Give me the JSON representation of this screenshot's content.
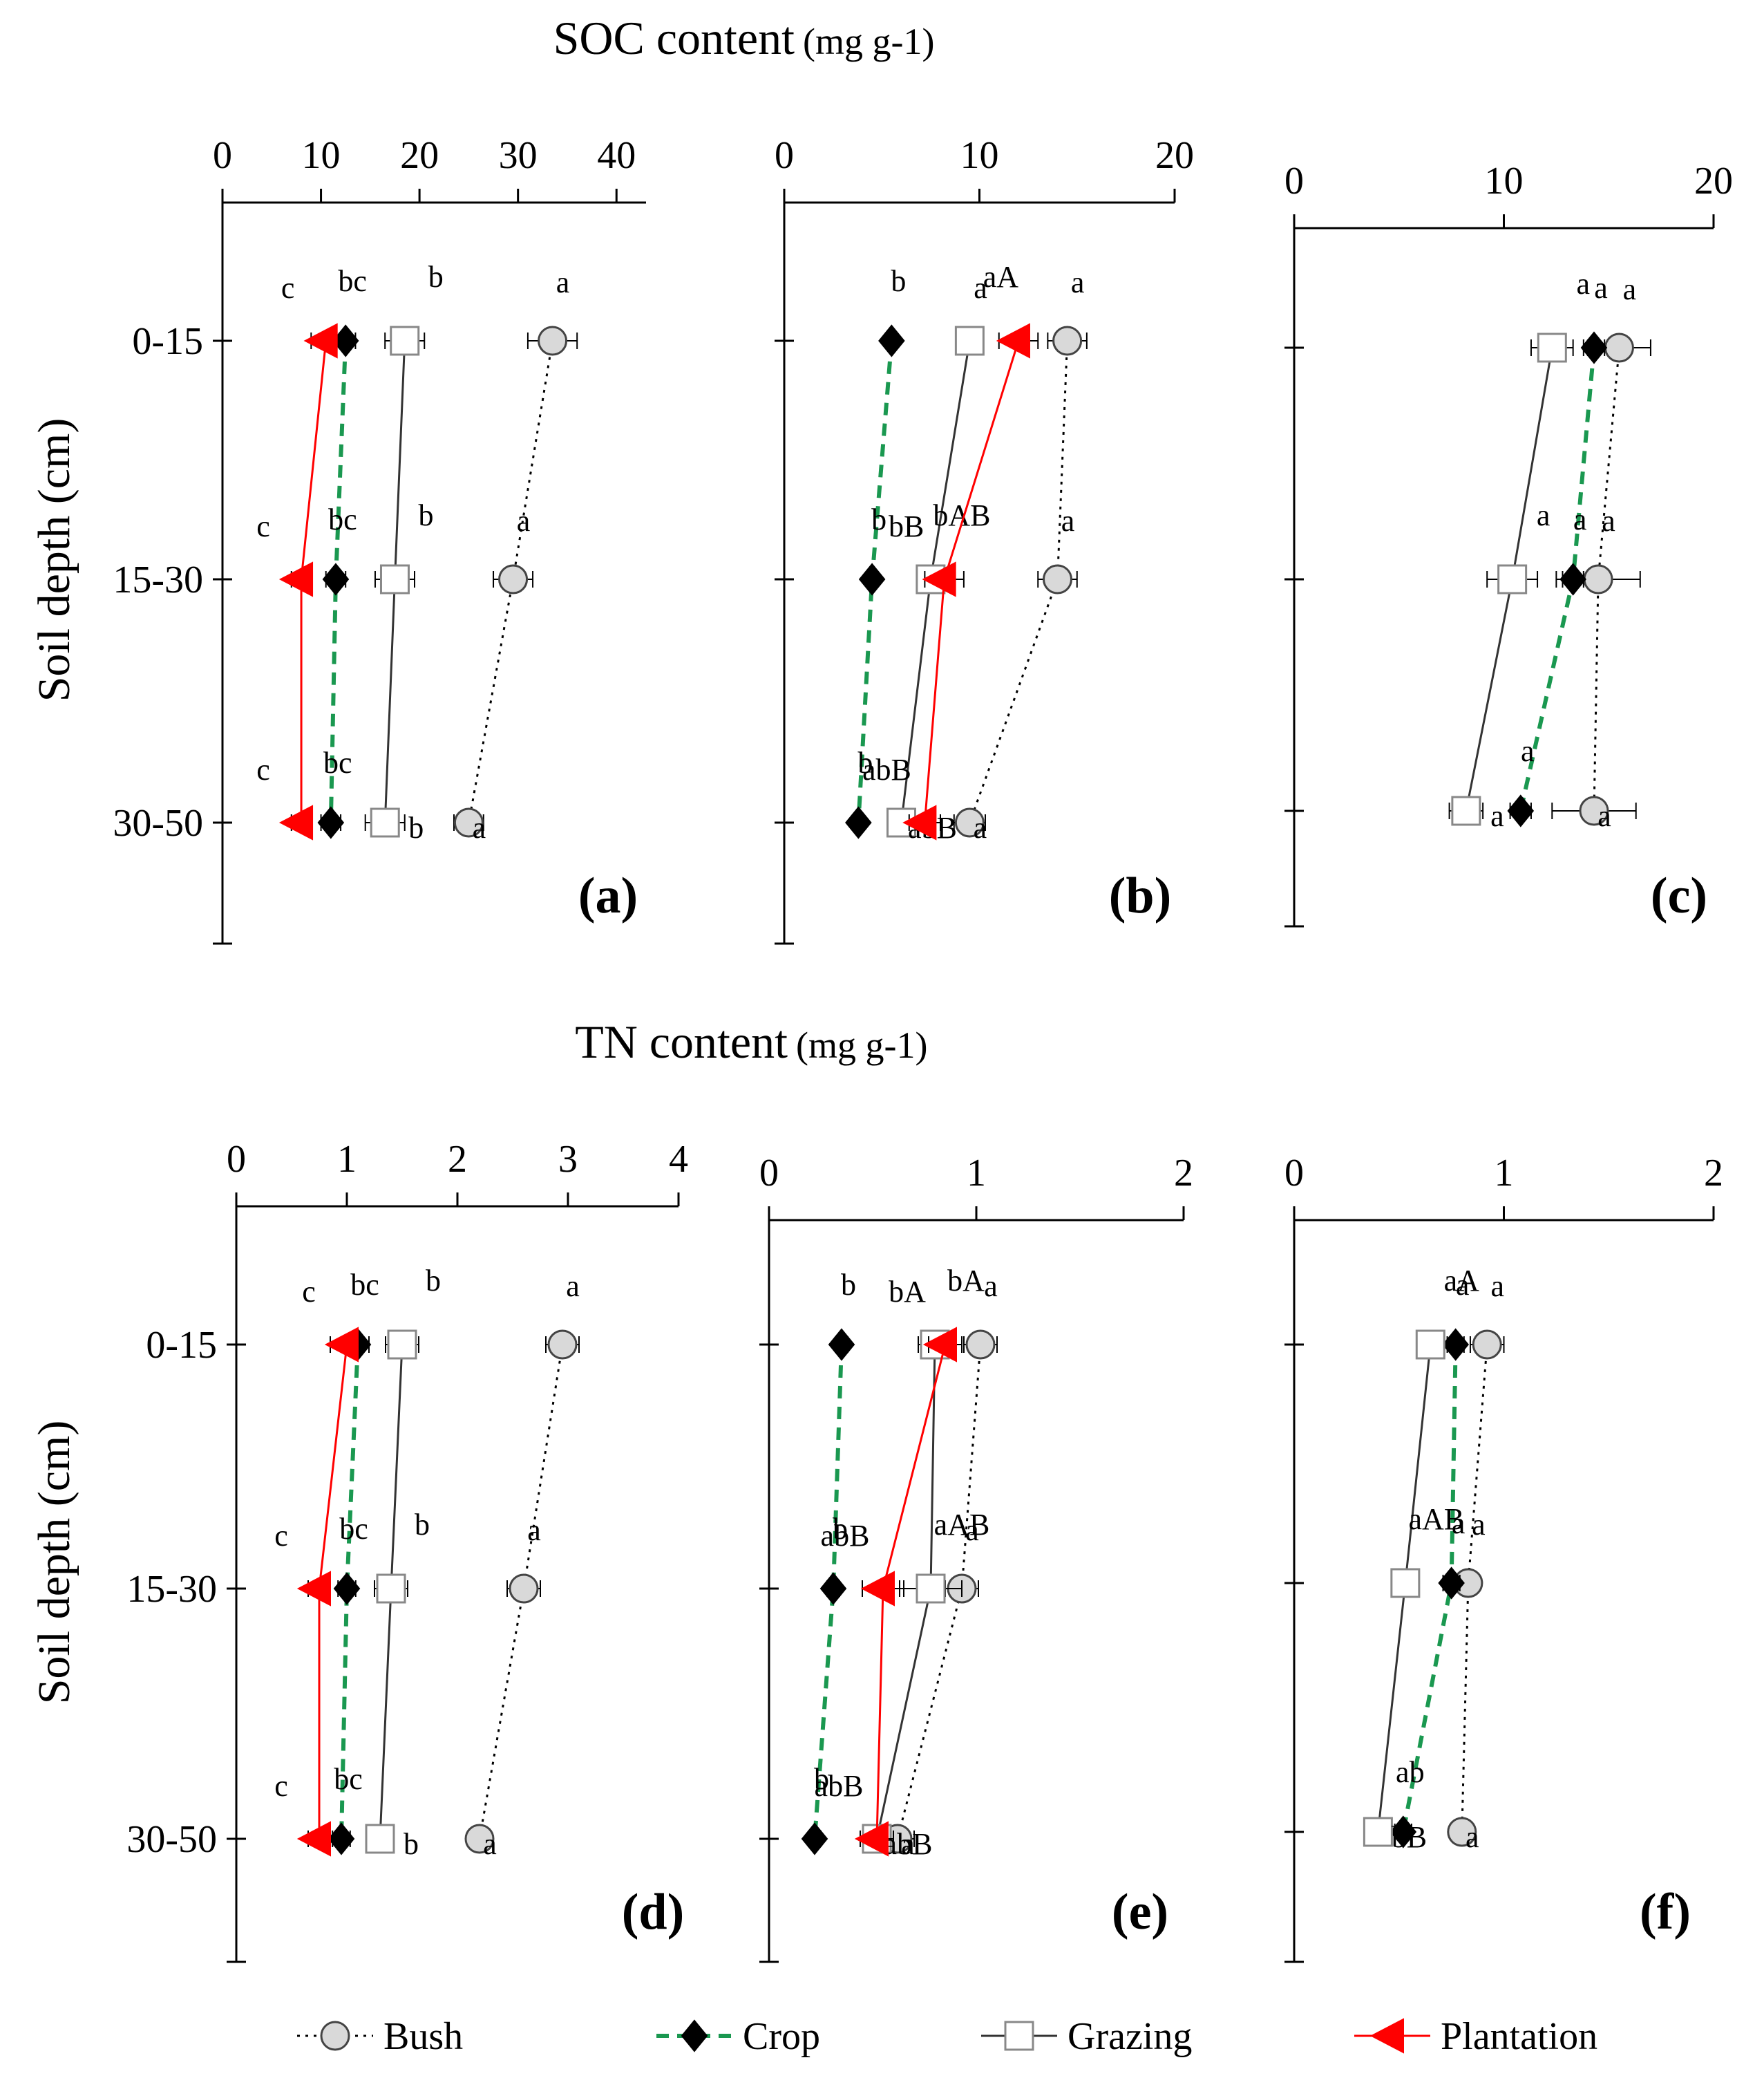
{
  "chart_data": [
    {
      "type": "line",
      "panel": "(a)",
      "title": "SOC content",
      "unit": "(mg g-1)",
      "ylabel": "Soil depth (cm)",
      "categories": [
        "0-15",
        "15-30",
        "30-50"
      ],
      "xlim": [
        0,
        43
      ],
      "xticks": [
        0,
        10,
        20,
        30,
        40
      ],
      "series": [
        {
          "name": "Bush",
          "values": [
            33.5,
            29.5,
            25.0
          ],
          "errors": [
            2.5,
            2.0,
            1.5
          ],
          "labels": [
            "a",
            "a",
            "a"
          ]
        },
        {
          "name": "Crop",
          "values": [
            12.5,
            11.5,
            11.0
          ],
          "errors": [
            1.0,
            1.0,
            1.0
          ],
          "labels": [
            "bc",
            "bc",
            "bc"
          ]
        },
        {
          "name": "Grazing",
          "values": [
            18.5,
            17.5,
            16.5
          ],
          "errors": [
            2.0,
            2.0,
            2.0
          ],
          "labels": [
            "b",
            "b",
            "b"
          ]
        },
        {
          "name": "Plantation",
          "values": [
            10.5,
            8.0,
            8.0
          ],
          "errors": [
            1.5,
            1.0,
            1.0
          ],
          "labels": [
            "c",
            "c",
            "c"
          ]
        }
      ]
    },
    {
      "type": "line",
      "panel": "(b)",
      "title": "SOC content",
      "unit": "(mg g-1)",
      "categories": [
        "0-15",
        "15-30",
        "30-50"
      ],
      "xlim": [
        0,
        20
      ],
      "xticks": [
        0,
        10,
        20
      ],
      "series": [
        {
          "name": "Bush",
          "values": [
            14.5,
            14.0,
            9.5
          ],
          "errors": [
            1.0,
            1.0,
            0.8
          ],
          "labels": [
            "a",
            "a",
            "a"
          ]
        },
        {
          "name": "Crop",
          "values": [
            5.5,
            4.5,
            3.8
          ],
          "errors": [
            0.3,
            0.3,
            0.3
          ],
          "labels": [
            "b",
            "b",
            "b"
          ]
        },
        {
          "name": "Grazing",
          "values": [
            9.5,
            7.5,
            6.0
          ],
          "errors": [
            0.6,
            0.6,
            0.6
          ],
          "labels": [
            "aA",
            "bAB",
            "abB"
          ]
        },
        {
          "name": "Plantation",
          "values": [
            12.0,
            8.2,
            7.2
          ],
          "errors": [
            1.0,
            1.0,
            0.8
          ],
          "labels": [
            "a",
            "bB",
            "abB"
          ]
        }
      ]
    },
    {
      "type": "line",
      "panel": "(c)",
      "title": "SOC content",
      "unit": "(mg g-1)",
      "categories": [
        "0-15",
        "15-30",
        "30-50"
      ],
      "xlim": [
        0,
        20
      ],
      "xticks": [
        0,
        10,
        20
      ],
      "series": [
        {
          "name": "Bush",
          "values": [
            15.5,
            14.5,
            14.3
          ],
          "errors": [
            1.5,
            2.0,
            2.0
          ],
          "labels": [
            "a",
            "a",
            "a"
          ]
        },
        {
          "name": "Crop",
          "values": [
            14.3,
            13.3,
            10.8
          ],
          "errors": [
            0.5,
            0.5,
            0.5
          ],
          "labels": [
            "a",
            "a",
            "a"
          ]
        },
        {
          "name": "Grazing",
          "values": [
            12.3,
            10.4,
            8.2
          ],
          "errors": [
            1.0,
            1.2,
            0.8
          ],
          "labels": [
            "a",
            "a",
            "a"
          ]
        }
      ]
    },
    {
      "type": "line",
      "panel": "(d)",
      "title": "TN content",
      "unit": "(mg g-1)",
      "ylabel": "Soil depth (cm)",
      "categories": [
        "0-15",
        "15-30",
        "30-50"
      ],
      "xlim": [
        0,
        4
      ],
      "xticks": [
        0,
        1,
        2,
        3,
        4
      ],
      "series": [
        {
          "name": "Bush",
          "values": [
            2.95,
            2.6,
            2.2
          ],
          "errors": [
            0.15,
            0.15,
            0.1
          ],
          "labels": [
            "a",
            "a",
            "a"
          ]
        },
        {
          "name": "Crop",
          "values": [
            1.1,
            1.0,
            0.95
          ],
          "errors": [
            0.1,
            0.08,
            0.08
          ],
          "labels": [
            "bc",
            "bc",
            "bc"
          ]
        },
        {
          "name": "Grazing",
          "values": [
            1.5,
            1.4,
            1.3
          ],
          "errors": [
            0.15,
            0.15,
            0.1
          ],
          "labels": [
            "b",
            "b",
            "b"
          ]
        },
        {
          "name": "Plantation",
          "values": [
            1.0,
            0.75,
            0.75
          ],
          "errors": [
            0.15,
            0.1,
            0.1
          ],
          "labels": [
            "c",
            "c",
            "c"
          ]
        }
      ]
    },
    {
      "type": "line",
      "panel": "(e)",
      "title": "TN content",
      "unit": "(mg g-1)",
      "categories": [
        "0-15",
        "15-30",
        "30-50"
      ],
      "xlim": [
        0,
        2
      ],
      "xticks": [
        0,
        1,
        2
      ],
      "series": [
        {
          "name": "Bush",
          "values": [
            1.02,
            0.93,
            0.62
          ],
          "errors": [
            0.08,
            0.08,
            0.08
          ],
          "labels": [
            "a",
            "a",
            "a"
          ]
        },
        {
          "name": "Crop",
          "values": [
            0.35,
            0.31,
            0.22
          ],
          "errors": [
            0.03,
            0.03,
            0.03
          ],
          "labels": [
            "b",
            "b",
            "b"
          ]
        },
        {
          "name": "Grazing",
          "values": [
            0.8,
            0.78,
            0.52
          ],
          "errors": [
            0.08,
            0.15,
            0.08
          ],
          "labels": [
            "bA",
            "aAB",
            "abB"
          ]
        },
        {
          "name": "Plantation",
          "values": [
            0.85,
            0.55,
            0.52
          ],
          "errors": [
            0.08,
            0.1,
            0.08
          ],
          "labels": [
            "bA",
            "abB",
            "abB"
          ]
        }
      ]
    },
    {
      "type": "line",
      "panel": "(f)",
      "title": "TN content",
      "unit": "(mg g-1)",
      "categories": [
        "0-15",
        "15-30",
        "30-50"
      ],
      "xlim": [
        0,
        2
      ],
      "xticks": [
        0,
        1,
        2
      ],
      "series": [
        {
          "name": "Bush",
          "values": [
            0.92,
            0.83,
            0.8
          ],
          "errors": [
            0.08,
            0.05,
            0.05
          ],
          "labels": [
            "a",
            "a",
            "a"
          ]
        },
        {
          "name": "Crop",
          "values": [
            0.77,
            0.75,
            0.52
          ],
          "errors": [
            0.04,
            0.04,
            0.04
          ],
          "labels": [
            "a",
            "a",
            "ab"
          ]
        },
        {
          "name": "Grazing",
          "values": [
            0.65,
            0.53,
            0.4
          ],
          "errors": [
            0.05,
            0.05,
            0.04
          ],
          "labels": [
            "aA",
            "aAB",
            "bB"
          ]
        }
      ]
    }
  ],
  "legend": {
    "items": [
      {
        "name": "Bush",
        "style": "dotted",
        "marker": "circle",
        "line_color": "#000000",
        "marker_fill": "#d9d9d9"
      },
      {
        "name": "Crop",
        "style": "dashed",
        "marker": "diamond",
        "line_color": "#1a9850",
        "marker_fill": "#000000"
      },
      {
        "name": "Grazing",
        "style": "solid",
        "marker": "square",
        "line_color": "#333333",
        "marker_fill": "#ffffff"
      },
      {
        "name": "Plantation",
        "style": "solid",
        "marker": "triangle",
        "line_color": "#ff0000",
        "marker_fill": "#ff0000"
      }
    ]
  },
  "colors": {
    "bush_marker": "#d9d9d9",
    "crop_line": "#1a9850",
    "plantation": "#ff0000",
    "axis": "#000000"
  }
}
